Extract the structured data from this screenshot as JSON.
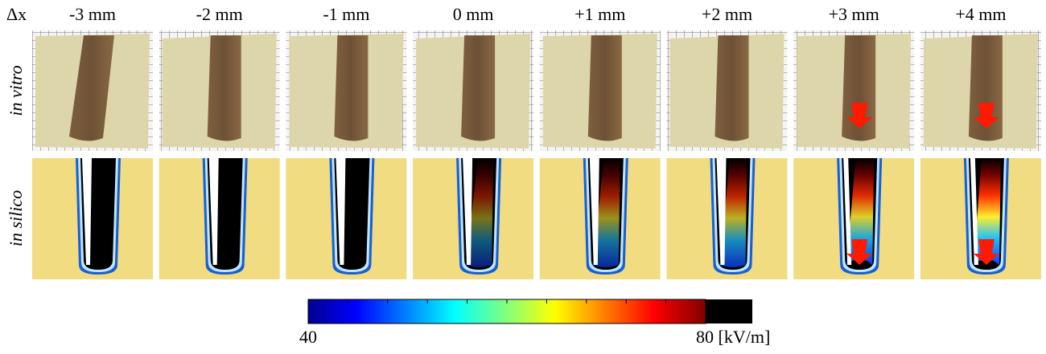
{
  "corner_label": "Δx",
  "columns": [
    "-3 mm",
    "-2 mm",
    "-1 mm",
    "0 mm",
    "+1 mm",
    "+2 mm",
    "+3 mm",
    "+4 mm"
  ],
  "rows": [
    "in vitro",
    "in silico"
  ],
  "colorbar": {
    "min_label": "40",
    "max_label": "80 [kV/m]"
  }
}
